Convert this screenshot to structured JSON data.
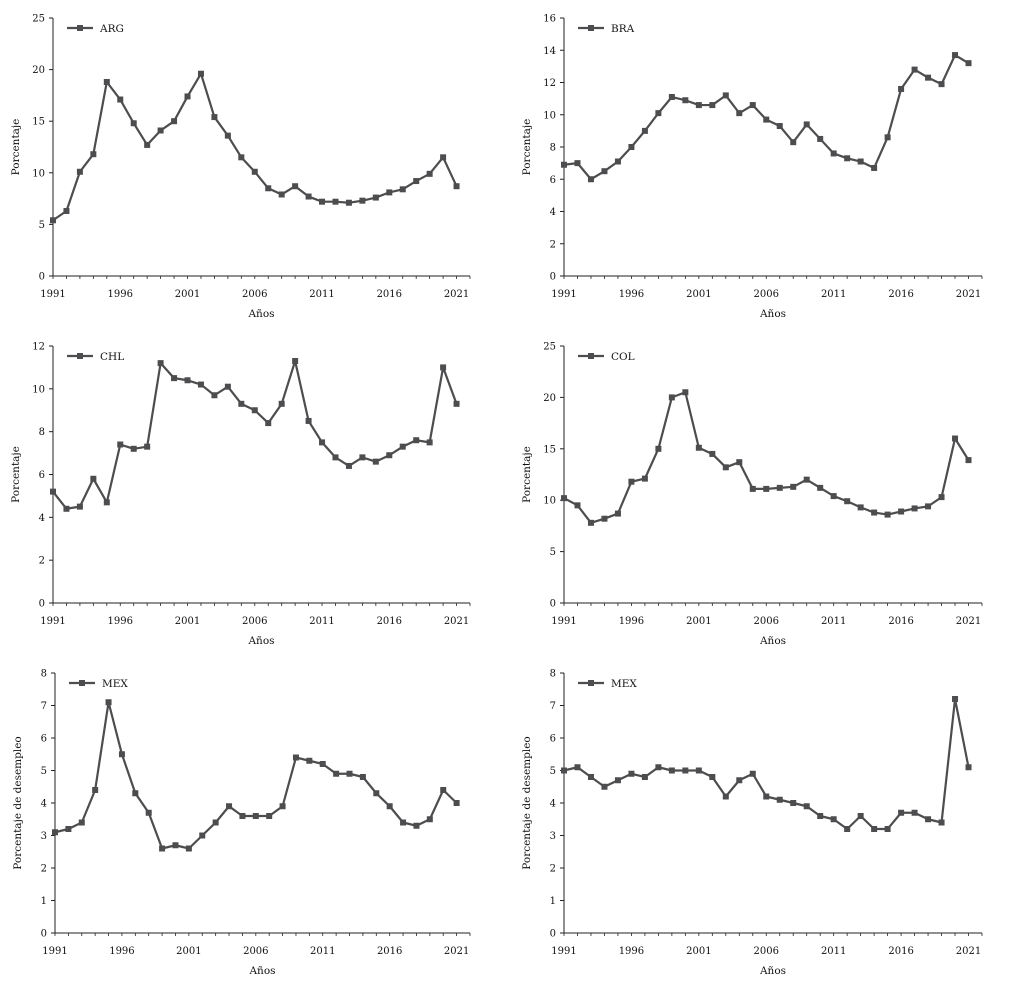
{
  "chart_data": [
    {
      "type": "line",
      "legend": "ARG",
      "xlabel": "Años",
      "ylabel": "Porcentaje",
      "ylim": [
        0,
        25
      ],
      "yticks": [
        "0",
        "5",
        "10",
        "15",
        "20",
        "25"
      ],
      "xlim": [
        1991,
        2022
      ],
      "xticks": [
        "1991",
        "1996",
        "2001",
        "2006",
        "2011",
        "2016",
        "2021"
      ],
      "x": [
        1991,
        1992,
        1993,
        1994,
        1995,
        1996,
        1997,
        1998,
        1999,
        2000,
        2001,
        2002,
        2003,
        2004,
        2005,
        2006,
        2007,
        2008,
        2009,
        2010,
        2011,
        2012,
        2013,
        2014,
        2015,
        2016,
        2017,
        2018,
        2019,
        2020,
        2021
      ],
      "values": [
        5.4,
        6.3,
        10.1,
        11.8,
        18.8,
        17.1,
        14.8,
        12.7,
        14.1,
        15.0,
        17.4,
        19.6,
        15.4,
        13.6,
        11.5,
        10.1,
        8.5,
        7.9,
        8.7,
        7.7,
        7.2,
        7.2,
        7.1,
        7.3,
        7.6,
        8.1,
        8.4,
        9.2,
        9.9,
        11.5,
        8.7
      ]
    },
    {
      "type": "line",
      "legend": "BRA",
      "xlabel": "Años",
      "ylabel": "Porcentaje",
      "ylim": [
        0,
        16
      ],
      "yticks": [
        "0",
        "2",
        "4",
        "6",
        "8",
        "10",
        "12",
        "14",
        "16"
      ],
      "xlim": [
        1991,
        2022
      ],
      "xticks": [
        "1991",
        "1996",
        "2001",
        "2006",
        "2011",
        "2016",
        "2021"
      ],
      "x": [
        1991,
        1992,
        1993,
        1994,
        1995,
        1996,
        1997,
        1998,
        1999,
        2000,
        2001,
        2002,
        2003,
        2004,
        2005,
        2006,
        2007,
        2008,
        2009,
        2010,
        2011,
        2012,
        2013,
        2014,
        2015,
        2016,
        2017,
        2018,
        2019,
        2020,
        2021
      ],
      "values": [
        6.9,
        7.0,
        6.0,
        6.5,
        7.1,
        8.0,
        9.0,
        10.1,
        11.1,
        10.9,
        10.6,
        10.6,
        11.2,
        10.1,
        10.6,
        9.7,
        9.3,
        8.3,
        9.4,
        8.5,
        7.6,
        7.3,
        7.1,
        6.7,
        8.6,
        11.6,
        12.8,
        12.3,
        11.9,
        13.7,
        13.2
      ]
    },
    {
      "type": "line",
      "legend": "CHL",
      "xlabel": "Años",
      "ylabel": "Porcentaje",
      "ylim": [
        0,
        12
      ],
      "yticks": [
        "0",
        "2",
        "4",
        "6",
        "8",
        "10",
        "12"
      ],
      "xlim": [
        1991,
        2022
      ],
      "xticks": [
        "1991",
        "1996",
        "2001",
        "2006",
        "2011",
        "2016",
        "2021"
      ],
      "x": [
        1991,
        1992,
        1993,
        1994,
        1995,
        1996,
        1997,
        1998,
        1999,
        2000,
        2001,
        2002,
        2003,
        2004,
        2005,
        2006,
        2007,
        2008,
        2009,
        2010,
        2011,
        2012,
        2013,
        2014,
        2015,
        2016,
        2017,
        2018,
        2019,
        2020,
        2021
      ],
      "values": [
        5.2,
        4.4,
        4.5,
        5.8,
        4.7,
        7.4,
        7.2,
        7.3,
        11.2,
        10.5,
        10.4,
        10.2,
        9.7,
        10.1,
        9.3,
        9.0,
        8.4,
        9.3,
        11.3,
        8.5,
        7.5,
        6.8,
        6.4,
        6.8,
        6.6,
        6.9,
        7.3,
        7.6,
        7.5,
        11.0,
        9.3
      ]
    },
    {
      "type": "line",
      "legend": "COL",
      "xlabel": "Años",
      "ylabel": "Porcentaje",
      "ylim": [
        0,
        25
      ],
      "yticks": [
        "0",
        "5",
        "10",
        "15",
        "20",
        "25"
      ],
      "xlim": [
        1991,
        2022
      ],
      "xticks": [
        "1991",
        "1996",
        "2001",
        "2006",
        "2011",
        "2016",
        "2021"
      ],
      "x": [
        1991,
        1992,
        1993,
        1994,
        1995,
        1996,
        1997,
        1998,
        1999,
        2000,
        2001,
        2002,
        2003,
        2004,
        2005,
        2006,
        2007,
        2008,
        2009,
        2010,
        2011,
        2012,
        2013,
        2014,
        2015,
        2016,
        2017,
        2018,
        2019,
        2020,
        2021
      ],
      "values": [
        10.2,
        9.5,
        7.8,
        8.2,
        8.7,
        11.8,
        12.1,
        15.0,
        20.0,
        20.5,
        15.1,
        14.5,
        13.2,
        13.7,
        11.1,
        11.1,
        11.2,
        11.3,
        12.0,
        11.2,
        10.4,
        9.9,
        9.3,
        8.8,
        8.6,
        8.9,
        9.2,
        9.4,
        10.3,
        16.0,
        13.9
      ]
    },
    {
      "type": "line",
      "legend": "MEX",
      "xlabel": "Años",
      "ylabel": "Porcentaje de desempleo",
      "ylim": [
        0,
        8
      ],
      "yticks": [
        "0",
        "1",
        "2",
        "3",
        "4",
        "5",
        "6",
        "7",
        "8"
      ],
      "xlim": [
        1991,
        2022
      ],
      "xticks": [
        "1991",
        "1996",
        "2001",
        "2006",
        "2011",
        "2016",
        "2021"
      ],
      "x": [
        1991,
        1992,
        1993,
        1994,
        1995,
        1996,
        1997,
        1998,
        1999,
        2000,
        2001,
        2002,
        2003,
        2004,
        2005,
        2006,
        2007,
        2008,
        2009,
        2010,
        2011,
        2012,
        2013,
        2014,
        2015,
        2016,
        2017,
        2018,
        2019,
        2020,
        2021
      ],
      "values": [
        3.1,
        3.2,
        3.4,
        4.4,
        7.1,
        5.5,
        4.3,
        3.7,
        2.6,
        2.7,
        2.6,
        3.0,
        3.4,
        3.9,
        3.6,
        3.6,
        3.6,
        3.9,
        5.4,
        5.3,
        5.2,
        4.9,
        4.9,
        4.8,
        4.3,
        3.9,
        3.4,
        3.3,
        3.5,
        4.4,
        4.0
      ]
    },
    {
      "type": "line",
      "legend": "MEX",
      "xlabel": "Años",
      "ylabel": "Porcentaje de desempleo",
      "ylim": [
        0,
        8
      ],
      "yticks": [
        "0",
        "1",
        "2",
        "3",
        "4",
        "5",
        "6",
        "7",
        "8"
      ],
      "xlim": [
        1991,
        2022
      ],
      "xticks": [
        "1991",
        "1996",
        "2001",
        "2006",
        "2011",
        "2016",
        "2021"
      ],
      "x": [
        1991,
        1992,
        1993,
        1994,
        1995,
        1996,
        1997,
        1998,
        1999,
        2000,
        2001,
        2002,
        2003,
        2004,
        2005,
        2006,
        2007,
        2008,
        2009,
        2010,
        2011,
        2012,
        2013,
        2014,
        2015,
        2016,
        2017,
        2018,
        2019,
        2020,
        2021
      ],
      "values": [
        5.0,
        5.1,
        4.8,
        4.5,
        4.7,
        4.9,
        4.8,
        5.1,
        5.0,
        5.0,
        5.0,
        4.8,
        4.2,
        4.7,
        4.9,
        4.2,
        4.1,
        4.0,
        3.9,
        3.6,
        3.5,
        3.2,
        3.6,
        3.2,
        3.2,
        3.7,
        3.7,
        3.5,
        3.4,
        7.2,
        5.1
      ]
    }
  ],
  "colors": {
    "series": "#4d4d4f",
    "axis": "#222222",
    "text": "#111111"
  }
}
